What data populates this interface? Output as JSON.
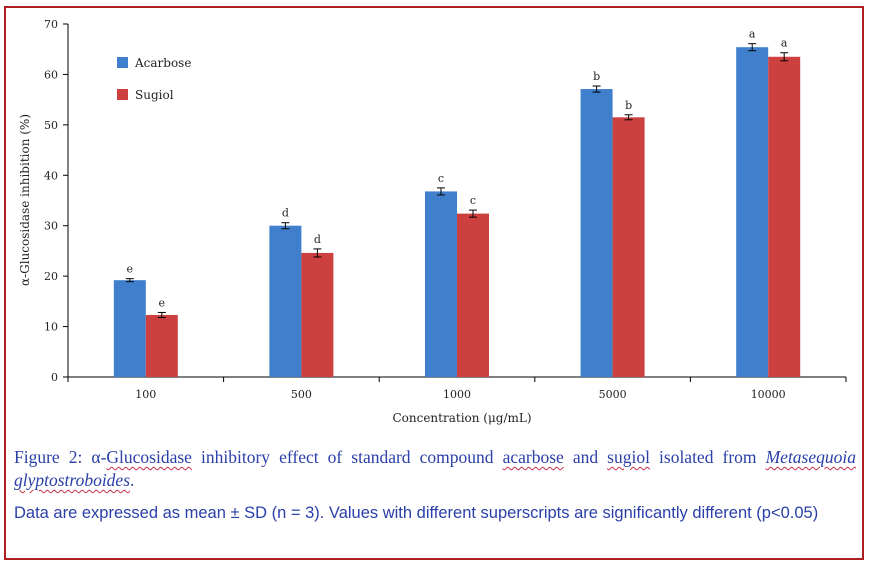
{
  "chart_data": {
    "type": "bar",
    "title": "",
    "xlabel": "Concentration (μg/mL)",
    "ylabel": "α-Glucosidase inhibition (%)",
    "ylim": [
      0,
      70
    ],
    "yticks": [
      0,
      10,
      20,
      30,
      40,
      50,
      60,
      70
    ],
    "grid": false,
    "legend_position": "top-left",
    "categories": [
      "100",
      "500",
      "1000",
      "5000",
      "10000"
    ],
    "series": [
      {
        "name": "Acarbose",
        "color": "#3f7fcc",
        "values": [
          19.2,
          30.0,
          36.8,
          57.1,
          65.4
        ],
        "errors": [
          0.3,
          0.6,
          0.7,
          0.6,
          0.7
        ],
        "labels": [
          "e",
          "d",
          "c",
          "b",
          "a"
        ]
      },
      {
        "name": "Sugiol",
        "color": "#cc4040",
        "values": [
          12.3,
          24.6,
          32.4,
          51.5,
          63.5
        ],
        "errors": [
          0.5,
          0.8,
          0.7,
          0.5,
          0.8
        ],
        "labels": [
          "e",
          "d",
          "c",
          "b",
          "a"
        ]
      }
    ]
  },
  "caption": {
    "prefix": "Figure 2: α-",
    "glucosidase": "Glucosidase",
    "part2": " inhibitory effect of standard compound ",
    "acarbose": "acarbose",
    "part3": " and ",
    "sugiol": "sugiol",
    "part4": " isolated from ",
    "genus": "Metasequoia",
    "space": " ",
    "species": "glyptostroboides",
    "end": "."
  },
  "note": "Data are expressed as mean ± SD (n = 3). Values with different superscripts are significantly different (p<0.05)"
}
